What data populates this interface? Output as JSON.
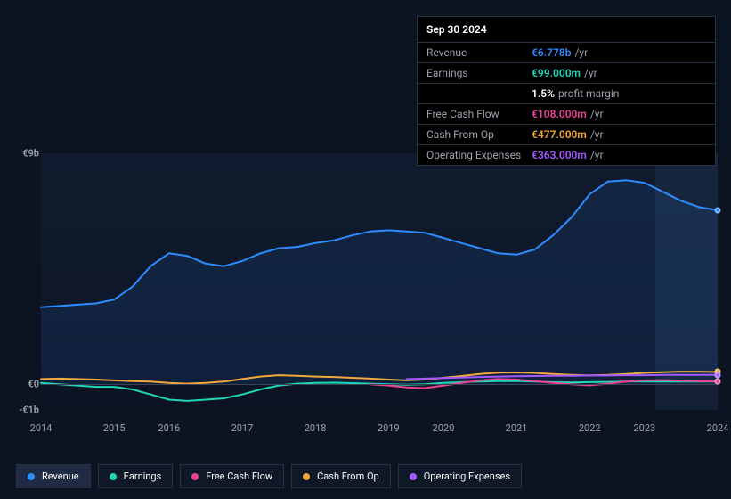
{
  "tooltip": {
    "date": "Sep 30 2024",
    "rows": [
      {
        "label": "Revenue",
        "value": "€6.778b",
        "suffix": "/yr",
        "color": "#2e8cff"
      },
      {
        "label": "Earnings",
        "value": "€99.000m",
        "suffix": "/yr",
        "color": "#1fd6b5"
      },
      {
        "label": "",
        "value": "1.5%",
        "suffix": "profit margin",
        "color": "#ffffff"
      },
      {
        "label": "Free Cash Flow",
        "value": "€108.000m",
        "suffix": "/yr",
        "color": "#e84393"
      },
      {
        "label": "Cash From Op",
        "value": "€477.000m",
        "suffix": "/yr",
        "color": "#f0a93c"
      },
      {
        "label": "Operating Expenses",
        "value": "€363.000m",
        "suffix": "/yr",
        "color": "#a259ff"
      }
    ]
  },
  "chart": {
    "type": "line",
    "background_color": "#0d1421",
    "y_axis": {
      "min": -1,
      "max": 9,
      "ticks": [
        {
          "v": 9,
          "label": "€9b"
        },
        {
          "v": 0,
          "label": "€0"
        },
        {
          "v": -1,
          "label": "-€1b"
        }
      ],
      "tick_color": "#9aa0ac",
      "tick_fontsize": 11
    },
    "x_axis": {
      "labels": [
        "2014",
        "2015",
        "2016",
        "2017",
        "2018",
        "2019",
        "2020",
        "2021",
        "2022",
        "2023",
        "2024"
      ],
      "tick_color": "#9aa0ac",
      "tick_fontsize": 11
    },
    "series": [
      {
        "name": "Revenue",
        "color": "#2e8cff",
        "line_width": 2,
        "fill_opacity": 0.1,
        "values": [
          3.0,
          3.05,
          3.1,
          3.15,
          3.3,
          3.8,
          4.6,
          5.1,
          5.0,
          4.7,
          4.6,
          4.8,
          5.1,
          5.3,
          5.35,
          5.5,
          5.6,
          5.8,
          5.95,
          6.0,
          5.95,
          5.9,
          5.7,
          5.5,
          5.3,
          5.1,
          5.05,
          5.25,
          5.8,
          6.5,
          7.4,
          7.9,
          7.95,
          7.85,
          7.5,
          7.15,
          6.9,
          6.78
        ],
        "marker_end": true
      },
      {
        "name": "Earnings",
        "color": "#1fd6b5",
        "line_width": 2,
        "fill_opacity": 0,
        "values": [
          0.05,
          0.0,
          -0.05,
          -0.1,
          -0.1,
          -0.2,
          -0.4,
          -0.6,
          -0.65,
          -0.6,
          -0.55,
          -0.4,
          -0.2,
          -0.05,
          0.02,
          0.05,
          0.06,
          0.04,
          0.02,
          0.0,
          -0.02,
          0.0,
          0.05,
          0.08,
          0.1,
          0.12,
          0.12,
          0.1,
          0.08,
          0.07,
          0.08,
          0.09,
          0.1,
          0.1,
          0.1,
          0.1,
          0.1,
          0.099
        ],
        "marker_end": true
      },
      {
        "name": "Free Cash Flow",
        "color": "#e84393",
        "line_width": 2,
        "fill_opacity": 0,
        "values": [
          null,
          null,
          null,
          null,
          null,
          null,
          null,
          null,
          null,
          null,
          null,
          null,
          null,
          null,
          null,
          null,
          null,
          null,
          0.0,
          -0.05,
          -0.12,
          -0.15,
          -0.05,
          0.05,
          0.15,
          0.2,
          0.18,
          0.12,
          0.05,
          0.0,
          -0.04,
          0.02,
          0.1,
          0.15,
          0.16,
          0.14,
          0.12,
          0.108
        ],
        "marker_end": true
      },
      {
        "name": "Cash From Op",
        "color": "#f0a93c",
        "line_width": 2,
        "fill_opacity": 0,
        "values": [
          0.2,
          0.22,
          0.2,
          0.18,
          0.15,
          0.12,
          0.1,
          0.05,
          0.02,
          0.05,
          0.1,
          0.2,
          0.3,
          0.35,
          0.33,
          0.3,
          0.28,
          0.25,
          0.22,
          0.18,
          0.15,
          0.18,
          0.25,
          0.32,
          0.4,
          0.45,
          0.46,
          0.44,
          0.4,
          0.36,
          0.34,
          0.36,
          0.4,
          0.44,
          0.47,
          0.49,
          0.49,
          0.477
        ],
        "marker_end": true
      },
      {
        "name": "Operating Expenses",
        "color": "#a259ff",
        "line_width": 2,
        "fill_opacity": 0,
        "values": [
          null,
          null,
          null,
          null,
          null,
          null,
          null,
          null,
          null,
          null,
          null,
          null,
          null,
          null,
          null,
          null,
          null,
          null,
          null,
          null,
          0.2,
          0.22,
          0.24,
          0.26,
          0.28,
          0.3,
          0.31,
          0.32,
          0.33,
          0.33,
          0.34,
          0.34,
          0.35,
          0.35,
          0.36,
          0.36,
          0.36,
          0.363
        ],
        "marker_end": true
      }
    ],
    "legend": {
      "items": [
        {
          "label": "Revenue",
          "color": "#2e8cff",
          "active": true
        },
        {
          "label": "Earnings",
          "color": "#1fd6b5",
          "active": false
        },
        {
          "label": "Free Cash Flow",
          "color": "#e84393",
          "active": false
        },
        {
          "label": "Cash From Op",
          "color": "#f0a93c",
          "active": false
        },
        {
          "label": "Operating Expenses",
          "color": "#a259ff",
          "active": false
        }
      ]
    }
  }
}
